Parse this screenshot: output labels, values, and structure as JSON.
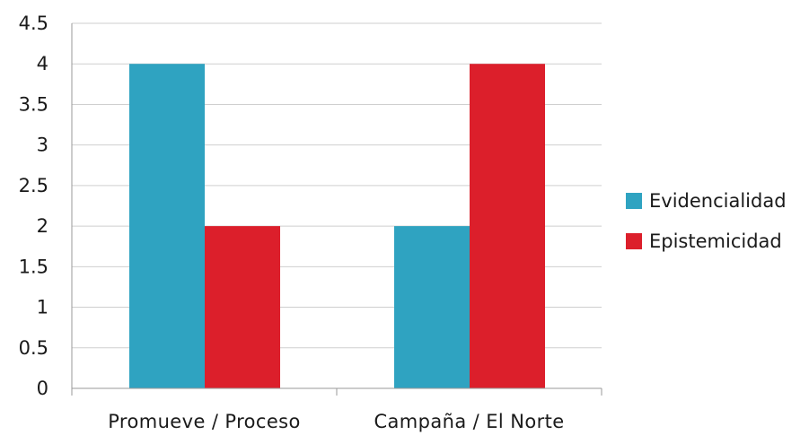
{
  "chart_data": {
    "type": "bar",
    "categories": [
      "Promueve / Proceso",
      "Campaña / El  Norte"
    ],
    "series": [
      {
        "name": "Evidencialidad",
        "values": [
          4,
          2
        ],
        "color": "#2fa3c1"
      },
      {
        "name": "Epistemicidad",
        "values": [
          2,
          4
        ],
        "color": "#dc1f2b"
      }
    ],
    "ylim": [
      0,
      4.5
    ],
    "yticks": [
      "0",
      "0.5",
      "1",
      "1.5",
      "2",
      "2.5",
      "3",
      "3.5",
      "4",
      "4.5"
    ],
    "grid": true,
    "legend_position": "right",
    "title": "",
    "xlabel": "",
    "ylabel": ""
  }
}
